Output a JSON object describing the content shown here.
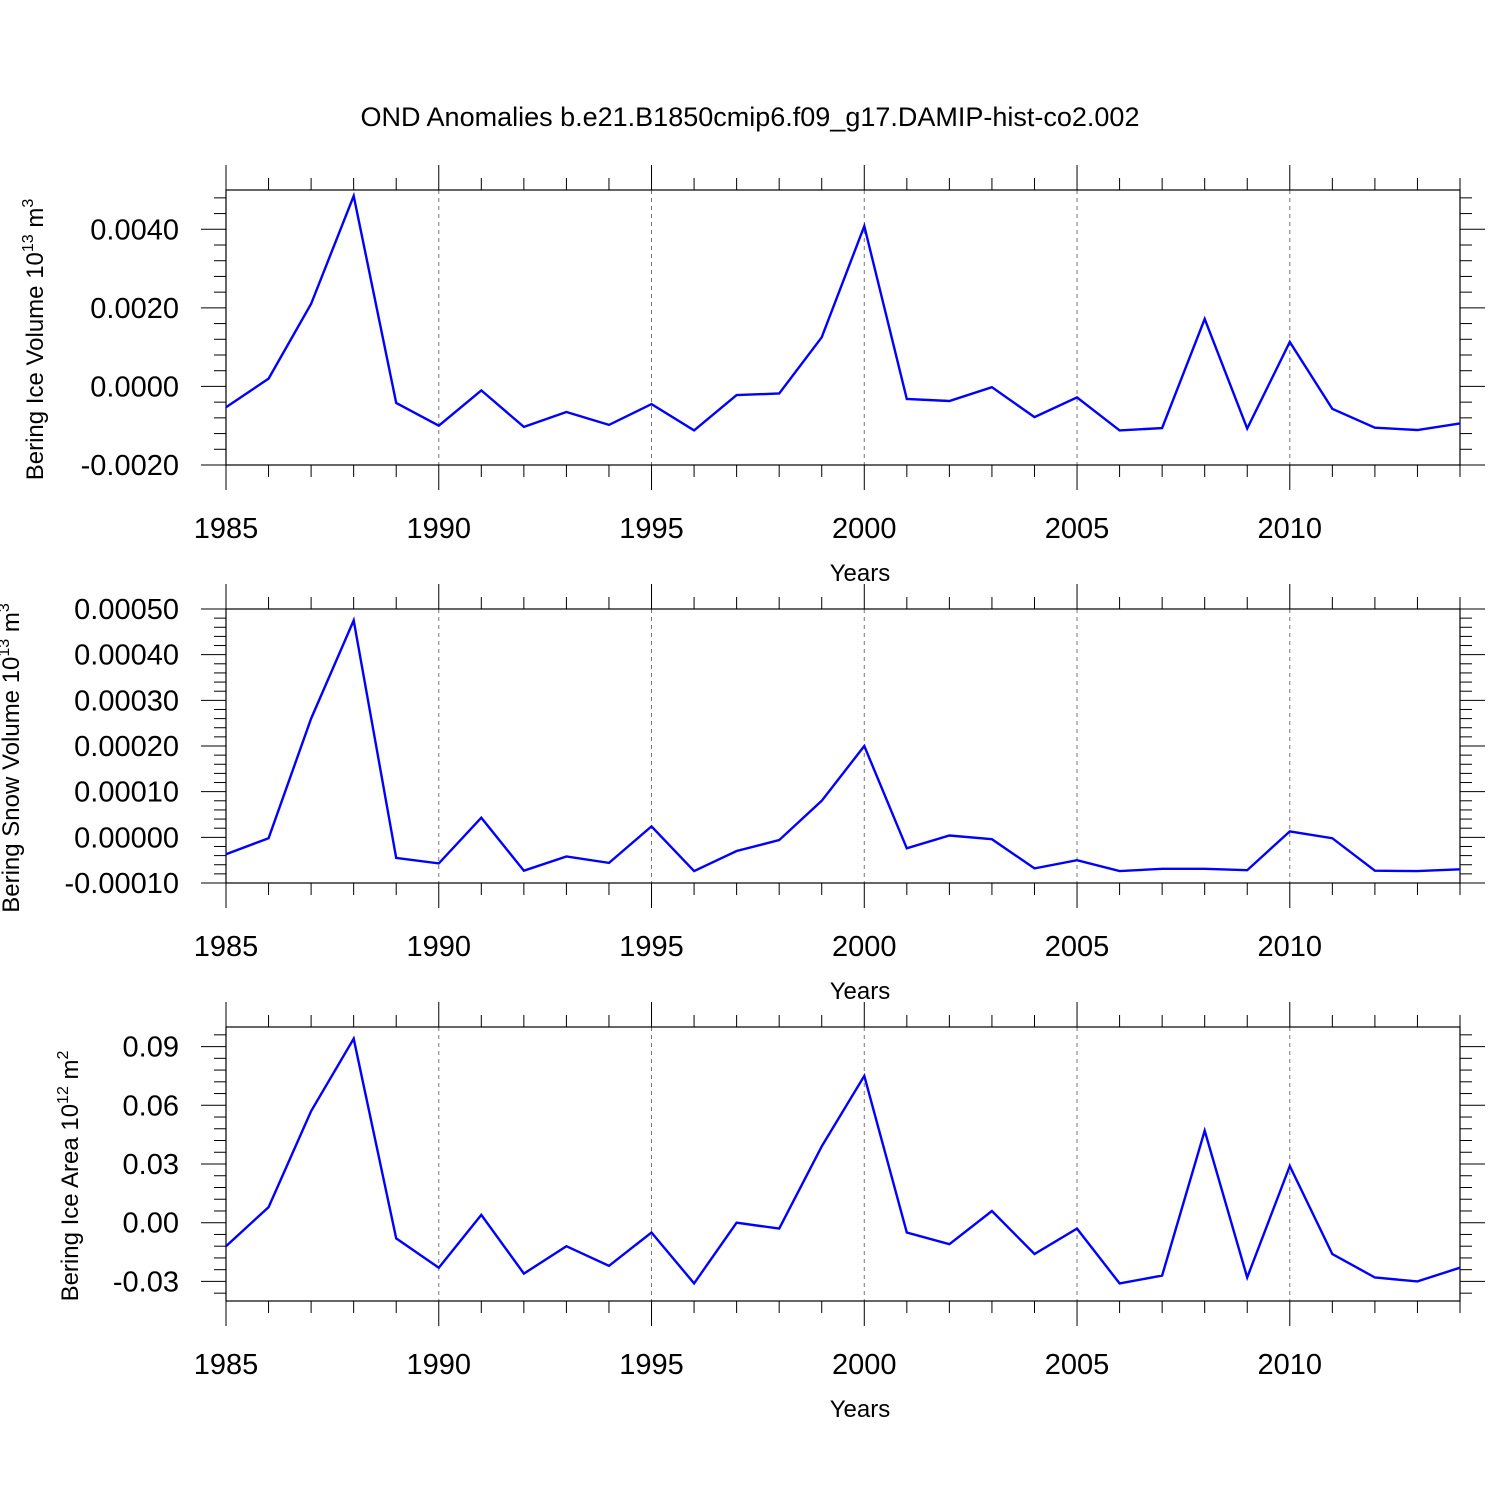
{
  "figure_title": "OND Anomalies b.e21.B1850cmip6.f09_g17.DAMIP-hist-co2.002",
  "line_color": "#0000ff",
  "chart_data": [
    {
      "type": "line",
      "ylabel": "Bering Ice Volume 10",
      "ylabel_exp": "13",
      "ylabel_unit": " m",
      "ylabel_unit_exp": "3",
      "xlabel": "Years",
      "xlim": [
        1985,
        2014
      ],
      "ylim": [
        -0.002,
        0.005
      ],
      "yticks": [
        -0.002,
        0.0,
        0.002,
        0.004
      ],
      "ytick_labels": [
        "-0.0020",
        "0.0000",
        "0.0020",
        "0.0040"
      ],
      "xticks": [
        1985,
        1990,
        1995,
        2000,
        2005,
        2010
      ],
      "xtick_labels": [
        "1985",
        "1990",
        "1995",
        "2000",
        "2005",
        "2010"
      ],
      "x": [
        1985,
        1986,
        1987,
        1988,
        1989,
        1990,
        1991,
        1992,
        1993,
        1994,
        1995,
        1996,
        1997,
        1998,
        1999,
        2000,
        2001,
        2002,
        2003,
        2004,
        2005,
        2006,
        2007,
        2008,
        2009,
        2010,
        2011,
        2012,
        2013,
        2014
      ],
      "series": [
        {
          "name": "Bering Ice Volume",
          "values": [
            -0.00053,
            0.0002,
            0.0021,
            0.00485,
            -0.00042,
            -0.001,
            -0.0001,
            -0.00103,
            -0.00065,
            -0.00098,
            -0.00045,
            -0.00112,
            -0.00022,
            -0.00018,
            0.00125,
            0.00408,
            -0.00032,
            -0.00037,
            -2e-05,
            -0.00078,
            -0.00028,
            -0.00112,
            -0.00106,
            0.00172,
            -0.00107,
            0.00113,
            -0.00057,
            -0.00105,
            -0.00111,
            -0.00094
          ]
        }
      ]
    },
    {
      "type": "line",
      "ylabel": "Bering Snow Volume 10",
      "ylabel_exp": "13",
      "ylabel_unit": " m",
      "ylabel_unit_exp": "3",
      "xlabel": "Years",
      "xlim": [
        1985,
        2014
      ],
      "ylim": [
        -0.0001,
        0.0005
      ],
      "yticks": [
        -0.0001,
        0.0,
        0.0001,
        0.0002,
        0.0003,
        0.0004,
        0.0005
      ],
      "ytick_labels": [
        "-0.00010",
        "0.00000",
        "0.00010",
        "0.00020",
        "0.00030",
        "0.00040",
        "0.00050"
      ],
      "xticks": [
        1985,
        1990,
        1995,
        2000,
        2005,
        2010
      ],
      "xtick_labels": [
        "1985",
        "1990",
        "1995",
        "2000",
        "2005",
        "2010"
      ],
      "x": [
        1985,
        1986,
        1987,
        1988,
        1989,
        1990,
        1991,
        1992,
        1993,
        1994,
        1995,
        1996,
        1997,
        1998,
        1999,
        2000,
        2001,
        2002,
        2003,
        2004,
        2005,
        2006,
        2007,
        2008,
        2009,
        2010,
        2011,
        2012,
        2013,
        2014
      ],
      "series": [
        {
          "name": "Bering Snow Volume",
          "values": [
            -3.7e-05,
            -2e-06,
            0.00026,
            0.000475,
            -4.5e-05,
            -5.7e-05,
            4.3e-05,
            -7.3e-05,
            -4.2e-05,
            -5.6e-05,
            2.4e-05,
            -7.4e-05,
            -3e-05,
            -6e-06,
            8e-05,
            0.0002,
            -2.4e-05,
            4e-06,
            -4e-06,
            -6.8e-05,
            -5e-05,
            -7.4e-05,
            -6.9e-05,
            -6.9e-05,
            -7.2e-05,
            1.3e-05,
            -2e-06,
            -7.3e-05,
            -7.4e-05,
            -7e-05
          ]
        }
      ]
    },
    {
      "type": "line",
      "ylabel": "Bering Ice Area 10",
      "ylabel_exp": "12",
      "ylabel_unit": " m",
      "ylabel_unit_exp": "2",
      "xlabel": "Years",
      "xlim": [
        1985,
        2014
      ],
      "ylim": [
        -0.04,
        0.1
      ],
      "yticks": [
        -0.03,
        0.0,
        0.03,
        0.06,
        0.09
      ],
      "ytick_labels": [
        "-0.03",
        "0.00",
        "0.03",
        "0.06",
        "0.09"
      ],
      "xticks": [
        1985,
        1990,
        1995,
        2000,
        2005,
        2010
      ],
      "xtick_labels": [
        "1985",
        "1990",
        "1995",
        "2000",
        "2005",
        "2010"
      ],
      "x": [
        1985,
        1986,
        1987,
        1988,
        1989,
        1990,
        1991,
        1992,
        1993,
        1994,
        1995,
        1996,
        1997,
        1998,
        1999,
        2000,
        2001,
        2002,
        2003,
        2004,
        2005,
        2006,
        2007,
        2008,
        2009,
        2010,
        2011,
        2012,
        2013,
        2014
      ],
      "series": [
        {
          "name": "Bering Ice Area",
          "values": [
            -0.012,
            0.008,
            0.057,
            0.094,
            -0.008,
            -0.023,
            0.004,
            -0.026,
            -0.012,
            -0.022,
            -0.005,
            -0.031,
            0.0,
            -0.003,
            0.039,
            0.075,
            -0.005,
            -0.011,
            0.006,
            -0.016,
            -0.003,
            -0.031,
            -0.027,
            0.047,
            -0.028,
            0.029,
            -0.016,
            -0.028,
            -0.03,
            -0.023
          ]
        }
      ]
    }
  ]
}
